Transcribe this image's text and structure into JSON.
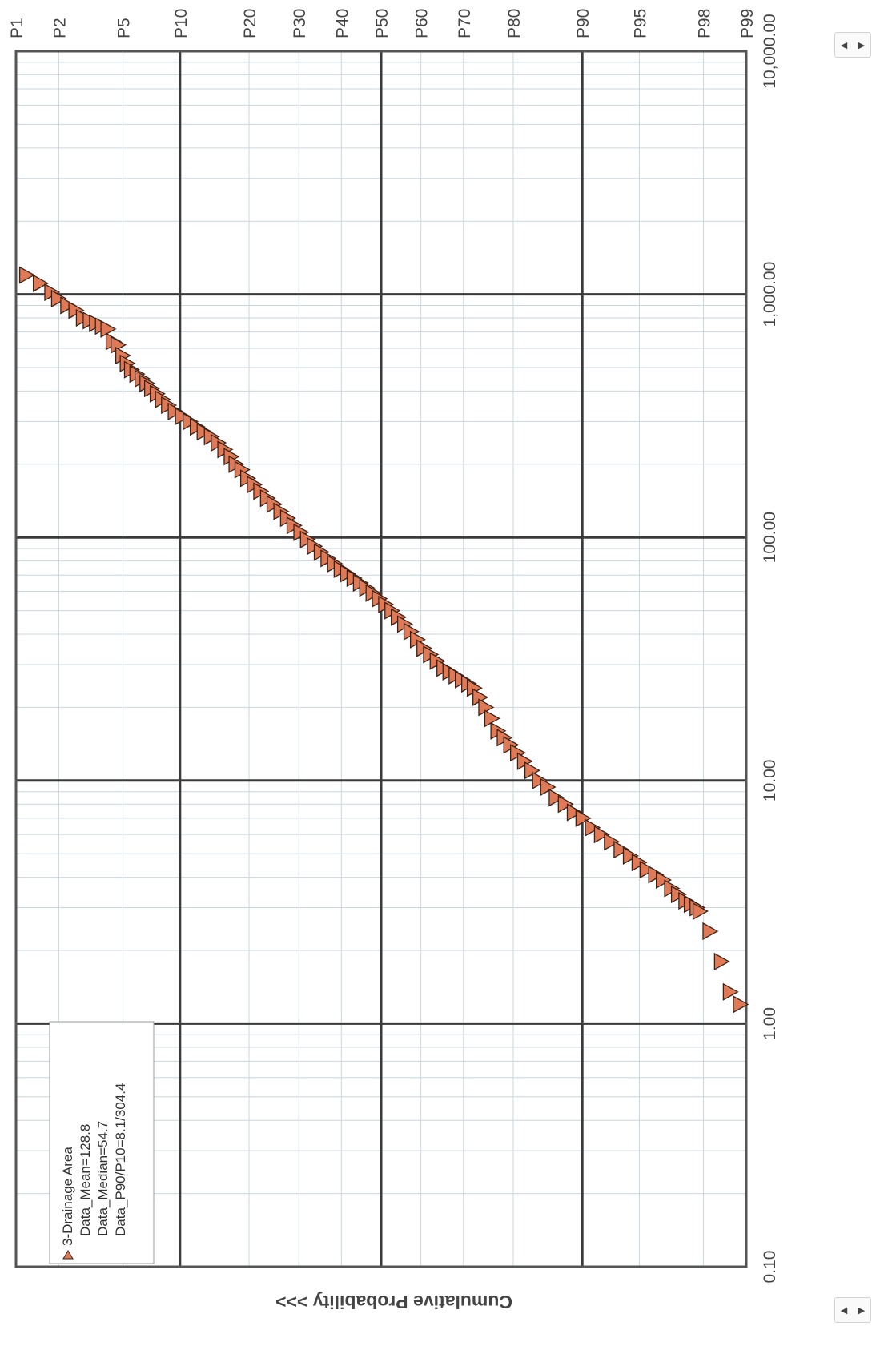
{
  "chart_data": {
    "type": "scatter",
    "orientation": "rotated-90",
    "scale": {
      "value_axis": "log",
      "probability_axis": "normal-probability"
    },
    "value_ticks": [
      "0.10",
      "1.00",
      "10.00",
      "100.00",
      "1,000.00",
      "10,000.00"
    ],
    "value_range": [
      0.1,
      10000
    ],
    "probability_ticks": [
      "P1",
      "P2",
      "P5",
      "P10",
      "P20",
      "P30",
      "P40",
      "P50",
      "P60",
      "P70",
      "P80",
      "P90",
      "P95",
      "P98",
      "P99"
    ],
    "probability_label": "Cumulative Probability >>>",
    "grid": true,
    "legend": {
      "position": "top-left",
      "series_name": "3-Drainage Area",
      "lines": [
        "Data_Mean=128.8",
        "Data_Median=54.7",
        "Data_P90/P10=8.1/304.4"
      ]
    },
    "series": [
      {
        "name": "3-Drainage Area",
        "marker": "triangle",
        "color": "#e07a56",
        "points": [
          {
            "value": 1200,
            "p": 0.012
          },
          {
            "value": 1110,
            "p": 0.015
          },
          {
            "value": 1020,
            "p": 0.018
          },
          {
            "value": 960,
            "p": 0.02
          },
          {
            "value": 900,
            "p": 0.023
          },
          {
            "value": 860,
            "p": 0.026
          },
          {
            "value": 800,
            "p": 0.029
          },
          {
            "value": 780,
            "p": 0.032
          },
          {
            "value": 760,
            "p": 0.035
          },
          {
            "value": 740,
            "p": 0.038
          },
          {
            "value": 720,
            "p": 0.041
          },
          {
            "value": 640,
            "p": 0.044
          },
          {
            "value": 620,
            "p": 0.047
          },
          {
            "value": 560,
            "p": 0.05
          },
          {
            "value": 520,
            "p": 0.053
          },
          {
            "value": 490,
            "p": 0.056
          },
          {
            "value": 470,
            "p": 0.06
          },
          {
            "value": 450,
            "p": 0.064
          },
          {
            "value": 430,
            "p": 0.068
          },
          {
            "value": 410,
            "p": 0.072
          },
          {
            "value": 390,
            "p": 0.077
          },
          {
            "value": 370,
            "p": 0.082
          },
          {
            "value": 350,
            "p": 0.088
          },
          {
            "value": 330,
            "p": 0.095
          },
          {
            "value": 315,
            "p": 0.103
          },
          {
            "value": 300,
            "p": 0.112
          },
          {
            "value": 285,
            "p": 0.121
          },
          {
            "value": 272,
            "p": 0.13
          },
          {
            "value": 260,
            "p": 0.14
          },
          {
            "value": 245,
            "p": 0.15
          },
          {
            "value": 230,
            "p": 0.16
          },
          {
            "value": 215,
            "p": 0.17
          },
          {
            "value": 200,
            "p": 0.178
          },
          {
            "value": 190,
            "p": 0.188
          },
          {
            "value": 175,
            "p": 0.198
          },
          {
            "value": 165,
            "p": 0.21
          },
          {
            "value": 155,
            "p": 0.222
          },
          {
            "value": 145,
            "p": 0.235
          },
          {
            "value": 137,
            "p": 0.248
          },
          {
            "value": 128,
            "p": 0.262
          },
          {
            "value": 120,
            "p": 0.276
          },
          {
            "value": 112,
            "p": 0.29
          },
          {
            "value": 105,
            "p": 0.305
          },
          {
            "value": 98,
            "p": 0.32
          },
          {
            "value": 92,
            "p": 0.336
          },
          {
            "value": 87,
            "p": 0.352
          },
          {
            "value": 82,
            "p": 0.368
          },
          {
            "value": 78,
            "p": 0.384
          },
          {
            "value": 74,
            "p": 0.4
          },
          {
            "value": 71,
            "p": 0.416
          },
          {
            "value": 68,
            "p": 0.432
          },
          {
            "value": 65,
            "p": 0.448
          },
          {
            "value": 62,
            "p": 0.464
          },
          {
            "value": 59,
            "p": 0.48
          },
          {
            "value": 56,
            "p": 0.496
          },
          {
            "value": 53,
            "p": 0.512
          },
          {
            "value": 50,
            "p": 0.528
          },
          {
            "value": 47,
            "p": 0.544
          },
          {
            "value": 44,
            "p": 0.56
          },
          {
            "value": 41,
            "p": 0.576
          },
          {
            "value": 38,
            "p": 0.592
          },
          {
            "value": 35,
            "p": 0.608
          },
          {
            "value": 33,
            "p": 0.624
          },
          {
            "value": 31,
            "p": 0.64
          },
          {
            "value": 29,
            "p": 0.656
          },
          {
            "value": 28,
            "p": 0.67
          },
          {
            "value": 27,
            "p": 0.684
          },
          {
            "value": 26,
            "p": 0.698
          },
          {
            "value": 25,
            "p": 0.712
          },
          {
            "value": 24,
            "p": 0.724
          },
          {
            "value": 22,
            "p": 0.736
          },
          {
            "value": 20,
            "p": 0.748
          },
          {
            "value": 18,
            "p": 0.76
          },
          {
            "value": 16,
            "p": 0.772
          },
          {
            "value": 15,
            "p": 0.784
          },
          {
            "value": 14,
            "p": 0.796
          },
          {
            "value": 13,
            "p": 0.808
          },
          {
            "value": 12,
            "p": 0.82
          },
          {
            "value": 11,
            "p": 0.832
          },
          {
            "value": 10,
            "p": 0.844
          },
          {
            "value": 9.4,
            "p": 0.856
          },
          {
            "value": 8.5,
            "p": 0.868
          },
          {
            "value": 8.0,
            "p": 0.88
          },
          {
            "value": 7.4,
            "p": 0.891
          },
          {
            "value": 7.0,
            "p": 0.901
          },
          {
            "value": 6.4,
            "p": 0.911
          },
          {
            "value": 6.0,
            "p": 0.92
          },
          {
            "value": 5.6,
            "p": 0.929
          },
          {
            "value": 5.2,
            "p": 0.937
          },
          {
            "value": 4.9,
            "p": 0.944
          },
          {
            "value": 4.6,
            "p": 0.95
          },
          {
            "value": 4.3,
            "p": 0.955
          },
          {
            "value": 4.1,
            "p": 0.96
          },
          {
            "value": 3.9,
            "p": 0.964
          },
          {
            "value": 3.6,
            "p": 0.968
          },
          {
            "value": 3.4,
            "p": 0.971
          },
          {
            "value": 3.2,
            "p": 0.974
          },
          {
            "value": 3.1,
            "p": 0.976
          },
          {
            "value": 3.0,
            "p": 0.978
          },
          {
            "value": 2.9,
            "p": 0.979
          },
          {
            "value": 2.4,
            "p": 0.982
          },
          {
            "value": 1.8,
            "p": 0.985
          },
          {
            "value": 1.35,
            "p": 0.987
          },
          {
            "value": 1.2,
            "p": 0.989
          }
        ]
      }
    ]
  },
  "nav_buttons": {
    "prev": "◀",
    "next": "▶"
  },
  "colors": {
    "grid_major": "#3a3a3a",
    "grid_minor": "#c9d7df",
    "marker_fill": "#e07a56",
    "marker_stroke": "#3a2218",
    "frame": "#555555"
  }
}
